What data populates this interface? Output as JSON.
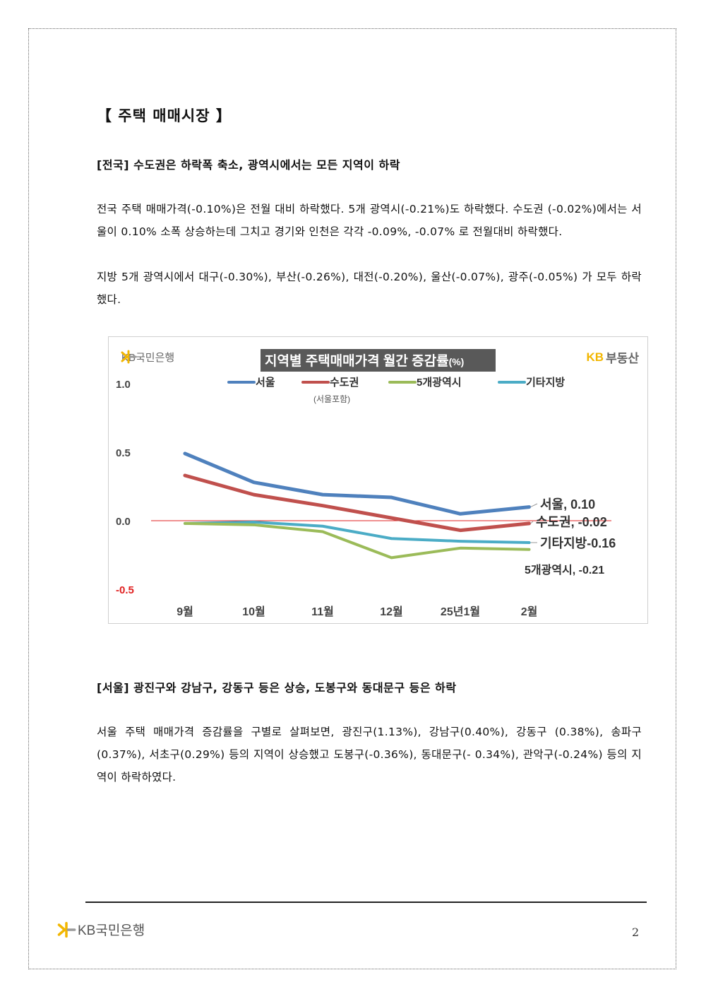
{
  "section_title": "【 주택 매매시장 】",
  "national": {
    "heading": "[전국] 수도권은 하락폭 축소, 광역시에서는 모든 지역이 하락",
    "para1": "전국 주택 매매가격(-0.10%)은 전월 대비 하락했다. 5개 광역시(-0.21%)도 하락했다. 수도권 (-0.02%)에서는 서울이 0.10% 소폭 상승하는데 그치고 경기와 인천은 각각 -0.09%, -0.07% 로 전월대비 하락했다.",
    "para2": "지방 5개 광역시에서 대구(-0.30%), 부산(-0.26%), 대전(-0.20%), 울산(-0.07%), 광주(-0.05%) 가 모두 하락했다."
  },
  "chart_logo_left": "KB국민은행",
  "chart_logo_right_kb": "KB",
  "chart_logo_right_text": "부동산",
  "chart_data": {
    "type": "line",
    "title": "지역별 주택매매가격 월간 증감률",
    "title_unit": "(%)",
    "legend_note": "(서울포함)",
    "categories": [
      "9월",
      "10월",
      "11월",
      "12월",
      "25년1월",
      "2월"
    ],
    "ylim": [
      -0.5,
      1.0
    ],
    "yticks": [
      "1.0",
      "0.5",
      "0.0",
      "-0.5"
    ],
    "yticks_values": [
      1.0,
      0.5,
      0.0,
      -0.5
    ],
    "grid": false,
    "legend_position": "top",
    "series": [
      {
        "name": "서울",
        "color": "#4f81bd",
        "values": [
          0.49,
          0.28,
          0.19,
          0.17,
          0.05,
          0.1
        ],
        "end_label": "서울, 0.10"
      },
      {
        "name": "수도권",
        "color": "#c0504d",
        "values": [
          0.33,
          0.19,
          0.11,
          0.02,
          -0.07,
          -0.02
        ],
        "end_label": "수도권, -0.02"
      },
      {
        "name": "5개광역시",
        "color": "#9bbb59",
        "values": [
          -0.02,
          -0.03,
          -0.08,
          -0.27,
          -0.2,
          -0.21
        ],
        "end_label": "5개광역시, -0.21"
      },
      {
        "name": "기타지방",
        "color": "#4bacc6",
        "values": [
          -0.02,
          -0.01,
          -0.04,
          -0.13,
          -0.15,
          -0.16
        ],
        "end_label": "기타지방-0.16"
      }
    ],
    "zero_line_color": "#e02020",
    "negative_tick_color": "#e02020"
  },
  "seoul": {
    "heading": "[서울] 광진구와 강남구, 강동구 등은 상승, 도봉구와 동대문구 등은 하락",
    "para": "서울 주택 매매가격 증감률을 구별로 살펴보면, 광진구(1.13%), 강남구(0.40%), 강동구 (0.38%), 송파구(0.37%), 서초구(0.29%) 등의 지역이 상승했고 도봉구(-0.36%), 동대문구(- 0.34%), 관악구(-0.24%) 등의 지역이 하락하였다."
  },
  "footer_logo": "KB국민은행",
  "page_number": "2",
  "colors": {
    "kb_yellow": "#f2b600",
    "kb_gray": "#666666"
  }
}
